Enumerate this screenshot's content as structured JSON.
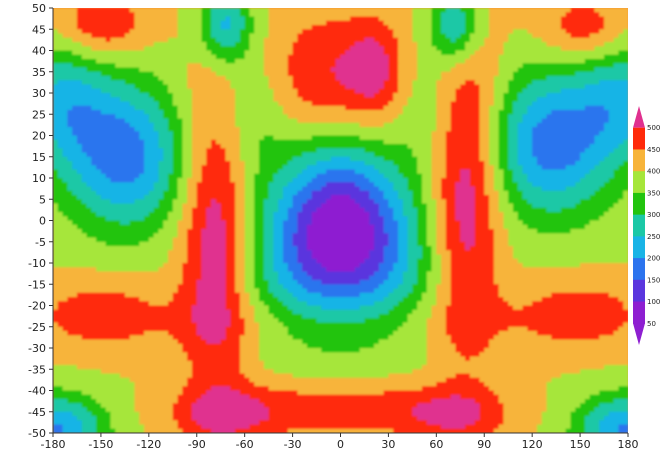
{
  "chart_data": {
    "type": "heatmap",
    "subtype": "filled-contour",
    "title": "",
    "xlabel": "",
    "ylabel": "",
    "xlim": [
      -180,
      180
    ],
    "ylim": [
      -50,
      50
    ],
    "x_ticks": [
      -180,
      -150,
      -120,
      -90,
      -60,
      -30,
      0,
      30,
      60,
      90,
      120,
      150,
      180
    ],
    "y_ticks": [
      50,
      45,
      40,
      35,
      30,
      25,
      20,
      15,
      10,
      5,
      0,
      -5,
      -10,
      -15,
      -20,
      -25,
      -30,
      -35,
      -40,
      -45,
      -50
    ],
    "colorbar": {
      "levels": [
        50,
        100,
        150,
        200,
        250,
        300,
        350,
        400,
        450,
        500
      ],
      "labels": [
        "50",
        "100",
        "150",
        "200",
        "250",
        "300",
        "350",
        "400",
        "450",
        "500"
      ],
      "colors": [
        "#8e1fd1",
        "#5a36de",
        "#2c74ee",
        "#19b4e6",
        "#1bc8a6",
        "#22c40e",
        "#a6e63a",
        "#f7b43a",
        "#ff2a0a",
        "#e0308f"
      ],
      "extend_both": true,
      "outside_color": "#f58a2e"
    },
    "features": [
      {
        "name": "central-min",
        "x": 0,
        "y": 0,
        "level": 50
      },
      {
        "name": "upper-left-max",
        "x": -150,
        "y": 46,
        "level": 450
      },
      {
        "name": "upper-right-max",
        "x": 153,
        "y": 45,
        "level": 450
      },
      {
        "name": "upper-center-max",
        "x": 22,
        "y": 36,
        "level": 500
      },
      {
        "name": "left-lobe",
        "x": -78,
        "y": -5,
        "level": 500
      },
      {
        "name": "right-lobe",
        "x": 78,
        "y": 8,
        "level": 500
      },
      {
        "name": "left-trough",
        "x": -135,
        "y": 15,
        "level": 200
      },
      {
        "name": "right-trough",
        "x": 132,
        "y": 18,
        "level": 200
      },
      {
        "name": "lower-band",
        "x": 0,
        "y": -44,
        "level": 450
      }
    ]
  }
}
